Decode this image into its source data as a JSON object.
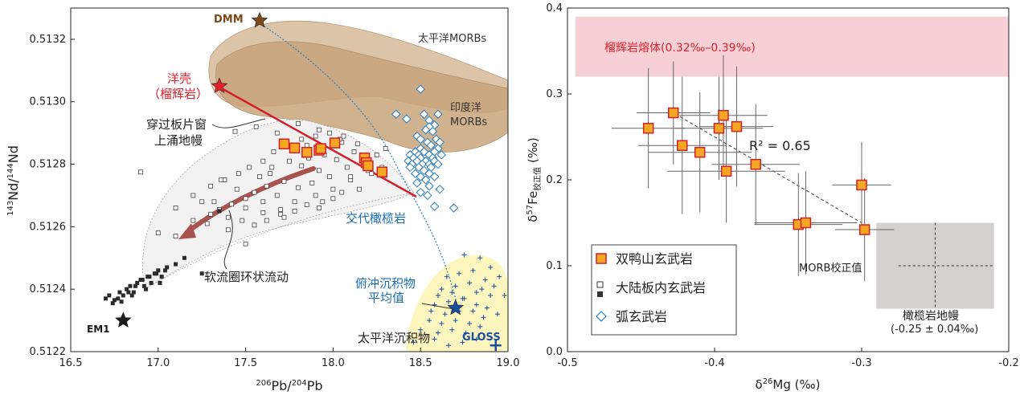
{
  "chart_data": [
    {
      "type": "scatter",
      "xlabel_parts": [
        "206",
        "Pb/",
        "204",
        "Pb"
      ],
      "ylabel_parts": [
        "143",
        "Nd/",
        "144",
        "Nd"
      ],
      "xlim": [
        16.5,
        19.0
      ],
      "ylim": [
        0.5122,
        0.5133
      ],
      "xticks": [
        "16.5",
        "17.0",
        "17.5",
        "18.0",
        "18.5",
        "19.0"
      ],
      "yticks": [
        "0.5122",
        "0.5124",
        "0.5126",
        "0.5128",
        "0.5130",
        "0.5132"
      ],
      "regions": [
        {
          "name": "太平洋MORBs",
          "color": "#d9c0a3"
        },
        {
          "name": "印度洋",
          "name2": "MORBs",
          "color": "#c9a67f"
        },
        {
          "name": "太平洋沉积物",
          "color": "#fdf7bf"
        }
      ],
      "end_members": [
        {
          "name": "DMM",
          "x": 17.58,
          "y": 0.51326,
          "color": "#7a4a1c"
        },
        {
          "name": "EM1",
          "x": 16.8,
          "y": 0.5123,
          "color": "#1a1a1a"
        },
        {
          "name": "洋壳",
          "name2": "（榴辉岩）",
          "x": 17.35,
          "y": 0.51305,
          "color": "#e0202b"
        },
        {
          "name": "俯冲沉积物",
          "name2": "平均值",
          "x": 18.7,
          "y": 0.51234,
          "color": "#1a4fa0"
        },
        {
          "name": "GLOSS",
          "x": 18.93,
          "y": 0.51222,
          "color": "#1a4fa0"
        }
      ],
      "annotations": [
        {
          "text": "穿过板片窗",
          "text2": "上涌地幔"
        },
        {
          "text": "软流圈环状流动"
        },
        {
          "text": "交代橄榄岩"
        }
      ],
      "series": [
        {
          "name": "双鸭山玄武岩",
          "color": "#f5a623",
          "x": [
            17.72,
            17.78,
            17.85,
            17.92,
            17.93,
            18.01,
            18.18,
            18.19,
            18.2,
            18.28
          ],
          "y": [
            0.512865,
            0.512852,
            0.512838,
            0.512845,
            0.51285,
            0.512868,
            0.51282,
            0.512805,
            0.512795,
            0.512775
          ]
        },
        {
          "name": "大陆板内玄武岩",
          "x": [
            16.9,
            17.0,
            17.1,
            17.2,
            17.25,
            17.3,
            17.35,
            17.4,
            17.42,
            17.45,
            17.5,
            17.5,
            17.55,
            17.58,
            17.6,
            17.6,
            17.62,
            17.65,
            17.68,
            17.7,
            17.72,
            17.75,
            17.78,
            17.8,
            17.82,
            17.85,
            17.88,
            17.9,
            17.92,
            17.95,
            17.98,
            18.0,
            18.02,
            18.05,
            18.08,
            18.1,
            18.12,
            18.15,
            18.18,
            18.2,
            18.22,
            18.25,
            18.28,
            18.3,
            17.4,
            17.48,
            17.55,
            17.62,
            17.7,
            17.78,
            17.85,
            17.92,
            18.0,
            18.05,
            17.3,
            17.38,
            17.46,
            17.52,
            17.6,
            17.66,
            17.74,
            17.82,
            17.9,
            17.98,
            17.2,
            17.32,
            17.44,
            17.56,
            17.68,
            17.8,
            17.92,
            18.04,
            18.14,
            17.1,
            17.28,
            17.5,
            17.72,
            17.94,
            18.1,
            17.36,
            17.64,
            17.86,
            18.06
          ],
          "y": [
            0.512775,
            0.51258,
            0.51257,
            0.51262,
            0.51268,
            0.51264,
            0.512655,
            0.51263,
            0.512672,
            0.51272,
            0.51269,
            0.51266,
            0.51271,
            0.51276,
            0.51268,
            0.512645,
            0.51273,
            0.51279,
            0.5127,
            0.512655,
            0.512745,
            0.51281,
            0.51268,
            0.512725,
            0.512795,
            0.51286,
            0.51274,
            0.5127,
            0.51278,
            0.51283,
            0.51276,
            0.51272,
            0.512815,
            0.51287,
            0.51279,
            0.51275,
            0.51284,
            0.51272,
            0.51281,
            0.51278,
            0.51277,
            0.51283,
            0.51279,
            0.51285,
            0.51259,
            0.51262,
            0.512605,
            0.51262,
            0.51264,
            0.51265,
            0.51267,
            0.51266,
            0.51269,
            0.51271,
            0.51273,
            0.51275,
            0.51277,
            0.51279,
            0.51281,
            0.51284,
            0.51286,
            0.51288,
            0.51289,
            0.5129,
            0.5127,
            0.51268,
            0.512905,
            0.51292,
            0.5129,
            0.51293,
            0.51291,
            0.51288,
            0.512865,
            0.51266,
            0.51261,
            0.512545,
            0.51263,
            0.51268,
            0.51276,
            0.51275,
            0.51277,
            0.51282,
            0.51289
          ]
        },
        {
          "name": "大陆板内玄武岩-filled",
          "x": [
            16.7,
            16.72,
            16.75,
            16.78,
            16.8,
            16.82,
            16.84,
            16.86,
            16.88,
            16.9,
            16.92,
            16.94,
            16.96,
            16.98,
            17.0,
            17.02,
            17.05,
            16.74,
            16.79,
            16.83,
            16.87,
            16.91,
            16.95,
            16.99,
            17.04,
            17.1,
            17.15,
            17.25,
            17.35,
            16.77,
            16.85,
            16.93,
            17.01
          ],
          "y": [
            0.51237,
            0.51238,
            0.512365,
            0.51239,
            0.51238,
            0.5124,
            0.51241,
            0.51239,
            0.51242,
            0.51243,
            0.51241,
            0.51244,
            0.51242,
            0.51245,
            0.51246,
            0.51244,
            0.51247,
            0.512355,
            0.51236,
            0.51239,
            0.51241,
            0.51243,
            0.51244,
            0.51245,
            0.51246,
            0.51248,
            0.5125,
            0.51245,
            0.51265,
            0.51237,
            0.51238,
            0.5124,
            0.51242
          ]
        },
        {
          "name": "弧玄武岩",
          "x": [
            18.58,
            18.5,
            18.52,
            18.55,
            18.58,
            18.6,
            18.55,
            18.48,
            18.5,
            18.53,
            18.57,
            18.59,
            18.61,
            18.54,
            18.5,
            18.56,
            18.6,
            18.47,
            18.52,
            18.58,
            18.44,
            18.49,
            18.55,
            18.62,
            18.46,
            18.5,
            18.57,
            18.43,
            18.48,
            18.53,
            18.58,
            18.45,
            18.51,
            18.55,
            18.6,
            18.44,
            18.49,
            18.56,
            18.52,
            18.47,
            18.55,
            18.5,
            18.58,
            18.53,
            18.48,
            18.55,
            18.61,
            18.5,
            18.54,
            18.69,
            18.36,
            18.42
          ],
          "y": [
            0.512665,
            0.51304,
            0.51296,
            0.51294,
            0.512925,
            0.51296,
            0.51292,
            0.51289,
            0.51288,
            0.51291,
            0.512905,
            0.51288,
            0.51287,
            0.51287,
            0.51285,
            0.51286,
            0.51285,
            0.51284,
            0.51284,
            0.51284,
            0.51283,
            0.51283,
            0.51283,
            0.51283,
            0.51282,
            0.51282,
            0.51282,
            0.51281,
            0.51281,
            0.51281,
            0.51281,
            0.5128,
            0.5128,
            0.5128,
            0.5128,
            0.51279,
            0.51279,
            0.51279,
            0.51278,
            0.51277,
            0.51277,
            0.51276,
            0.51276,
            0.51275,
            0.51274,
            0.51273,
            0.51272,
            0.51271,
            0.5127,
            0.51266,
            0.51296,
            0.512945
          ]
        },
        {
          "name": "太平洋沉积物-crosses",
          "x": [
            18.75,
            18.84,
            18.9,
            18.65,
            18.72,
            18.8,
            18.87,
            18.95,
            18.62,
            18.7,
            18.78,
            18.85,
            18.92,
            18.6,
            18.68,
            18.75,
            18.82,
            18.9,
            18.98,
            18.58,
            18.66,
            18.74,
            18.82,
            18.88,
            18.56,
            18.64,
            18.72,
            18.8,
            18.86,
            18.94,
            18.55,
            18.62,
            18.7,
            18.78,
            18.84,
            18.6,
            18.68,
            18.76,
            18.5,
            18.46,
            18.58,
            18.66,
            18.74,
            18.82
          ],
          "y": [
            0.51251,
            0.5125,
            0.51247,
            0.51244,
            0.51245,
            0.51246,
            0.51243,
            0.51244,
            0.5124,
            0.51241,
            0.51242,
            0.5124,
            0.51241,
            0.51238,
            0.51239,
            0.51237,
            0.51239,
            0.51238,
            0.51238,
            0.51235,
            0.51236,
            0.51237,
            0.51235,
            0.51234,
            0.51233,
            0.51232,
            0.51233,
            0.51233,
            0.51231,
            0.51232,
            0.5123,
            0.51229,
            0.5123,
            0.51229,
            0.51228,
            0.51226,
            0.51227,
            0.51226,
            0.51227,
            0.51223,
            0.51224,
            0.51222,
            0.51223,
            0.51224
          ]
        }
      ]
    },
    {
      "type": "scatter",
      "xlabel": "δ",
      "xlabel_sup": "26",
      "xlabel_rest": "Mg (‰)",
      "ylabel": "δ",
      "ylabel_sup": "57",
      "ylabel_mid": "Fe",
      "ylabel_sub": "校正值",
      "ylabel_rest": " (‰)",
      "xlim": [
        -0.5,
        -0.2
      ],
      "ylim": [
        0.0,
        0.4
      ],
      "xticks": [
        "-0.5",
        "-0.4",
        "-0.3",
        "-0.2"
      ],
      "yticks": [
        "0.0",
        "0.1",
        "0.2",
        "0.3",
        "0.4"
      ],
      "regions": [
        {
          "name": "榴辉岩熔体(0.32‰–0.39‰)",
          "y_range": [
            0.32,
            0.39
          ],
          "color": "#f6d0d4",
          "text_color": "#e0202b"
        },
        {
          "name": "橄榄岩地幔",
          "name2": "(-0.25 ± 0.04‰)",
          "x_range": [
            -0.29,
            -0.21
          ],
          "y_range": [
            0.05,
            0.15
          ],
          "color": "#d5d2cd"
        }
      ],
      "reference": {
        "name": "MORB校正值",
        "x": -0.25,
        "y": 0.1
      },
      "fit": {
        "label": "R² = 0.65",
        "x": [
          -0.43,
          -0.3
        ],
        "y": [
          0.28,
          0.15
        ]
      },
      "series": [
        {
          "name": "双鸭山玄武岩",
          "color": "#f5a623",
          "x": [
            -0.445,
            -0.428,
            -0.422,
            -0.41,
            -0.397,
            -0.394,
            -0.392,
            -0.385,
            -0.372,
            -0.343,
            -0.338,
            -0.3,
            -0.298
          ],
          "y": [
            0.26,
            0.278,
            0.24,
            0.232,
            0.26,
            0.275,
            0.21,
            0.262,
            0.218,
            0.148,
            0.15,
            0.194,
            0.142
          ],
          "xerr": [
            0.025,
            0.025,
            0.03,
            0.035,
            0.03,
            0.03,
            0.04,
            0.025,
            0.03,
            0.03,
            0.035,
            0.02,
            0.02
          ],
          "yerr": [
            0.07,
            0.06,
            0.08,
            0.07,
            0.06,
            0.07,
            0.06,
            0.07,
            0.07,
            0.06,
            0.06,
            0.05,
            0.06
          ]
        },
        {
          "name": "大陆板内玄武岩"
        },
        {
          "name": "弧玄武岩"
        }
      ]
    }
  ]
}
